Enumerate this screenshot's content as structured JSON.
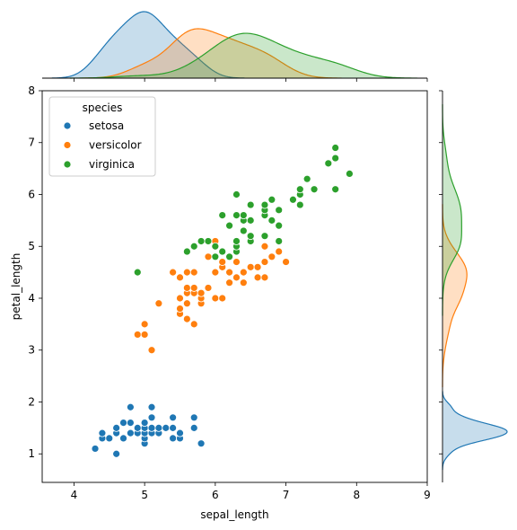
{
  "chart_data": {
    "type": "scatter",
    "xlabel": "sepal_length",
    "ylabel": "petal_length",
    "xlim": [
      3.55,
      9.0
    ],
    "ylim": [
      0.45,
      8.0
    ],
    "xticks": [
      4,
      5,
      6,
      7,
      8,
      9
    ],
    "yticks": [
      1,
      2,
      3,
      4,
      5,
      6,
      7,
      8
    ],
    "grid": false,
    "legend": {
      "title": "species",
      "position": "top-left"
    },
    "marginals": "kde",
    "series": [
      {
        "name": "setosa",
        "color": "#1f77b4",
        "points": [
          [
            4.3,
            1.1
          ],
          [
            4.4,
            1.3
          ],
          [
            4.4,
            1.4
          ],
          [
            4.5,
            1.3
          ],
          [
            4.6,
            1.0
          ],
          [
            4.6,
            1.4
          ],
          [
            4.6,
            1.5
          ],
          [
            4.7,
            1.3
          ],
          [
            4.7,
            1.6
          ],
          [
            4.8,
            1.4
          ],
          [
            4.8,
            1.6
          ],
          [
            4.8,
            1.9
          ],
          [
            4.9,
            1.4
          ],
          [
            4.9,
            1.5
          ],
          [
            5.0,
            1.2
          ],
          [
            5.0,
            1.3
          ],
          [
            5.0,
            1.4
          ],
          [
            5.0,
            1.5
          ],
          [
            5.0,
            1.6
          ],
          [
            5.1,
            1.4
          ],
          [
            5.1,
            1.5
          ],
          [
            5.1,
            1.7
          ],
          [
            5.1,
            1.9
          ],
          [
            5.2,
            1.4
          ],
          [
            5.2,
            1.5
          ],
          [
            5.3,
            1.5
          ],
          [
            5.4,
            1.3
          ],
          [
            5.4,
            1.5
          ],
          [
            5.4,
            1.7
          ],
          [
            5.5,
            1.3
          ],
          [
            5.5,
            1.4
          ],
          [
            5.7,
            1.5
          ],
          [
            5.7,
            1.7
          ],
          [
            5.8,
            1.2
          ]
        ]
      },
      {
        "name": "versicolor",
        "color": "#ff7f0e",
        "points": [
          [
            4.9,
            3.3
          ],
          [
            5.0,
            3.3
          ],
          [
            5.0,
            3.5
          ],
          [
            5.1,
            3.0
          ],
          [
            5.2,
            3.9
          ],
          [
            5.4,
            4.5
          ],
          [
            5.5,
            3.7
          ],
          [
            5.5,
            3.8
          ],
          [
            5.5,
            4.0
          ],
          [
            5.5,
            4.4
          ],
          [
            5.6,
            3.6
          ],
          [
            5.6,
            3.9
          ],
          [
            5.6,
            4.1
          ],
          [
            5.6,
            4.2
          ],
          [
            5.6,
            4.5
          ],
          [
            5.7,
            3.5
          ],
          [
            5.7,
            4.1
          ],
          [
            5.7,
            4.2
          ],
          [
            5.7,
            4.5
          ],
          [
            5.8,
            3.9
          ],
          [
            5.8,
            4.0
          ],
          [
            5.8,
            4.1
          ],
          [
            5.9,
            4.2
          ],
          [
            5.9,
            4.8
          ],
          [
            6.0,
            4.0
          ],
          [
            6.0,
            4.5
          ],
          [
            6.0,
            5.1
          ],
          [
            6.1,
            4.0
          ],
          [
            6.1,
            4.6
          ],
          [
            6.1,
            4.7
          ],
          [
            6.2,
            4.3
          ],
          [
            6.2,
            4.5
          ],
          [
            6.3,
            4.4
          ],
          [
            6.3,
            4.7
          ],
          [
            6.3,
            4.9
          ],
          [
            6.4,
            4.3
          ],
          [
            6.4,
            4.5
          ],
          [
            6.5,
            4.6
          ],
          [
            6.6,
            4.4
          ],
          [
            6.6,
            4.6
          ],
          [
            6.7,
            4.4
          ],
          [
            6.7,
            4.7
          ],
          [
            6.7,
            5.0
          ],
          [
            6.8,
            4.8
          ],
          [
            6.9,
            4.9
          ],
          [
            7.0,
            4.7
          ]
        ]
      },
      {
        "name": "virginica",
        "color": "#2ca02c",
        "points": [
          [
            4.9,
            4.5
          ],
          [
            5.6,
            4.9
          ],
          [
            5.7,
            5.0
          ],
          [
            5.8,
            5.1
          ],
          [
            5.9,
            5.1
          ],
          [
            6.0,
            4.8
          ],
          [
            6.0,
            5.0
          ],
          [
            6.1,
            4.9
          ],
          [
            6.1,
            5.6
          ],
          [
            6.2,
            4.8
          ],
          [
            6.2,
            5.4
          ],
          [
            6.3,
            4.9
          ],
          [
            6.3,
            5.0
          ],
          [
            6.3,
            5.1
          ],
          [
            6.3,
            5.6
          ],
          [
            6.3,
            6.0
          ],
          [
            6.4,
            5.3
          ],
          [
            6.4,
            5.5
          ],
          [
            6.4,
            5.6
          ],
          [
            6.5,
            5.1
          ],
          [
            6.5,
            5.2
          ],
          [
            6.5,
            5.5
          ],
          [
            6.5,
            5.8
          ],
          [
            6.7,
            5.2
          ],
          [
            6.7,
            5.6
          ],
          [
            6.7,
            5.7
          ],
          [
            6.7,
            5.8
          ],
          [
            6.8,
            5.5
          ],
          [
            6.8,
            5.9
          ],
          [
            6.9,
            5.1
          ],
          [
            6.9,
            5.4
          ],
          [
            6.9,
            5.7
          ],
          [
            7.1,
            5.9
          ],
          [
            7.2,
            5.8
          ],
          [
            7.2,
            6.0
          ],
          [
            7.2,
            6.1
          ],
          [
            7.3,
            6.3
          ],
          [
            7.4,
            6.1
          ],
          [
            7.6,
            6.6
          ],
          [
            7.7,
            6.1
          ],
          [
            7.7,
            6.7
          ],
          [
            7.7,
            6.9
          ],
          [
            7.9,
            6.4
          ]
        ]
      }
    ]
  }
}
